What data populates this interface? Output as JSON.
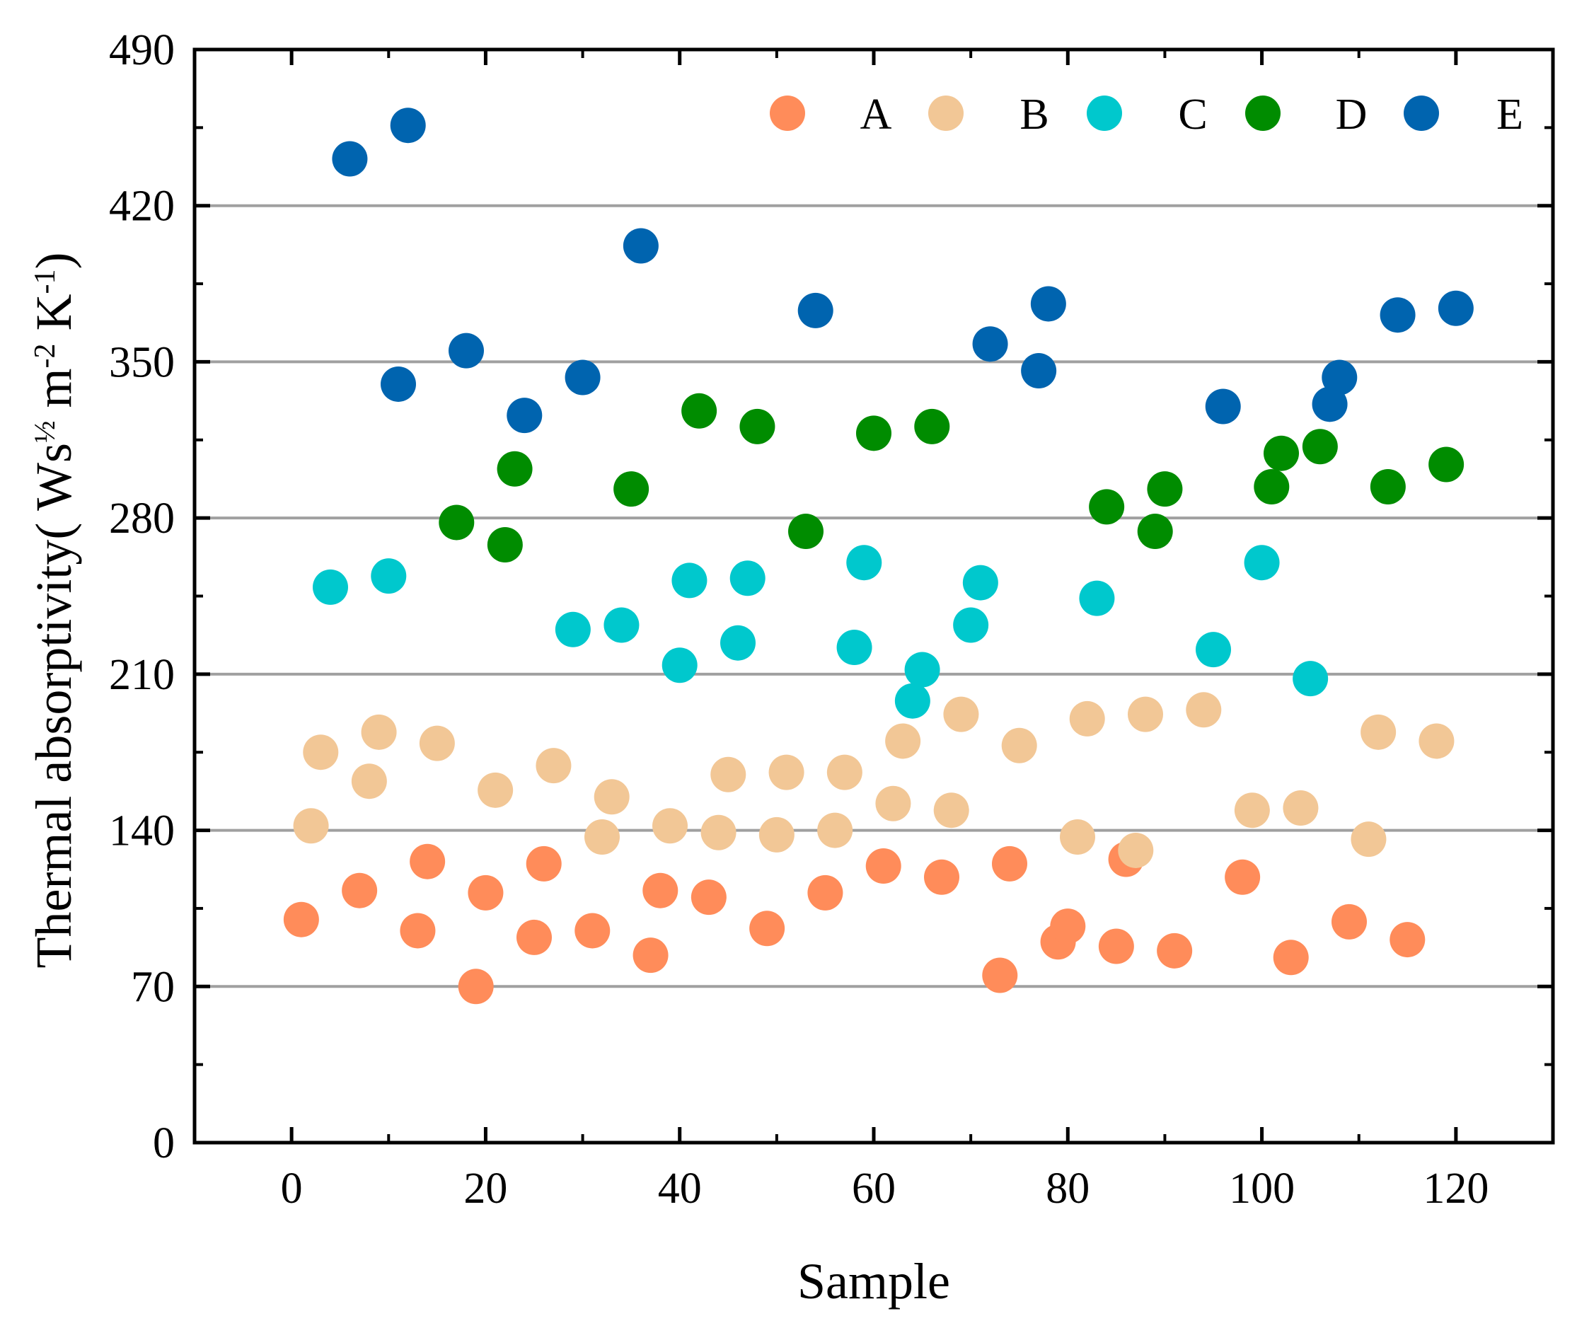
{
  "chart_data": {
    "type": "scatter",
    "title": "",
    "xlabel": "Sample",
    "ylabel": {
      "prefix": "Thermal absorptivity( Ws",
      "sup1": "½",
      "mid1": " m",
      "sup2": "-2",
      "mid2": " K",
      "sup3": "-1",
      "suffix": ")"
    },
    "xlim": [
      -10,
      130
    ],
    "ylim": [
      0,
      490
    ],
    "xticks": [
      0,
      20,
      40,
      60,
      80,
      100,
      120
    ],
    "yticks": [
      0,
      70,
      140,
      210,
      280,
      350,
      420,
      490
    ],
    "grid": "horizontal",
    "legend_position": "top",
    "series": [
      {
        "name": "A",
        "color": "#FF8C5A",
        "points": [
          [
            1,
            100
          ],
          [
            7,
            113
          ],
          [
            13,
            95
          ],
          [
            14,
            126
          ],
          [
            19,
            70
          ],
          [
            20,
            112
          ],
          [
            25,
            92
          ],
          [
            26,
            125
          ],
          [
            31,
            95
          ],
          [
            37,
            84
          ],
          [
            38,
            113
          ],
          [
            43,
            110
          ],
          [
            49,
            96
          ],
          [
            55,
            112
          ],
          [
            61,
            124
          ],
          [
            67,
            119
          ],
          [
            73,
            75
          ],
          [
            74,
            125
          ],
          [
            79,
            90
          ],
          [
            80,
            97
          ],
          [
            85,
            88
          ],
          [
            86,
            127
          ],
          [
            91,
            86
          ],
          [
            98,
            119
          ],
          [
            103,
            83
          ],
          [
            109,
            99
          ],
          [
            115,
            91
          ]
        ]
      },
      {
        "name": "B",
        "color": "#F2C796",
        "points": [
          [
            2,
            142
          ],
          [
            3,
            175
          ],
          [
            8,
            162
          ],
          [
            9,
            184
          ],
          [
            15,
            179
          ],
          [
            21,
            158
          ],
          [
            27,
            169
          ],
          [
            32,
            137
          ],
          [
            33,
            155
          ],
          [
            39,
            142
          ],
          [
            44,
            139
          ],
          [
            45,
            165
          ],
          [
            50,
            138
          ],
          [
            51,
            166
          ],
          [
            56,
            140
          ],
          [
            57,
            166
          ],
          [
            62,
            152
          ],
          [
            63,
            180
          ],
          [
            68,
            149
          ],
          [
            69,
            192
          ],
          [
            75,
            178
          ],
          [
            81,
            137
          ],
          [
            82,
            190
          ],
          [
            87,
            131
          ],
          [
            88,
            192
          ],
          [
            94,
            194
          ],
          [
            99,
            149
          ],
          [
            104,
            150
          ],
          [
            111,
            136
          ],
          [
            112,
            184
          ],
          [
            118,
            180
          ]
        ]
      },
      {
        "name": "C",
        "color": "#00C8CD",
        "points": [
          [
            4,
            249
          ],
          [
            10,
            254
          ],
          [
            29,
            230
          ],
          [
            34,
            232
          ],
          [
            40,
            214
          ],
          [
            41,
            252
          ],
          [
            46,
            224
          ],
          [
            47,
            253
          ],
          [
            58,
            222
          ],
          [
            59,
            260
          ],
          [
            64,
            198
          ],
          [
            65,
            212
          ],
          [
            70,
            232
          ],
          [
            71,
            251
          ],
          [
            83,
            244
          ],
          [
            95,
            221
          ],
          [
            100,
            260
          ],
          [
            105,
            208
          ]
        ]
      },
      {
        "name": "D",
        "color": "#008C00",
        "points": [
          [
            17,
            278
          ],
          [
            22,
            268
          ],
          [
            23,
            302
          ],
          [
            35,
            293
          ],
          [
            42,
            328
          ],
          [
            48,
            321
          ],
          [
            53,
            274
          ],
          [
            60,
            318
          ],
          [
            66,
            321
          ],
          [
            84,
            285
          ],
          [
            89,
            274
          ],
          [
            90,
            293
          ],
          [
            101,
            294
          ],
          [
            102,
            309
          ],
          [
            106,
            312
          ],
          [
            113,
            294
          ],
          [
            119,
            304
          ]
        ]
      },
      {
        "name": "E",
        "color": "#0064AF",
        "points": [
          [
            6,
            441
          ],
          [
            12,
            456
          ],
          [
            11,
            340
          ],
          [
            18,
            355
          ],
          [
            24,
            326
          ],
          [
            30,
            343
          ],
          [
            36,
            402
          ],
          [
            54,
            373
          ],
          [
            72,
            358
          ],
          [
            77,
            346
          ],
          [
            78,
            376
          ],
          [
            96,
            330
          ],
          [
            107,
            331
          ],
          [
            108,
            343
          ],
          [
            114,
            371
          ],
          [
            120,
            374
          ]
        ]
      }
    ]
  }
}
